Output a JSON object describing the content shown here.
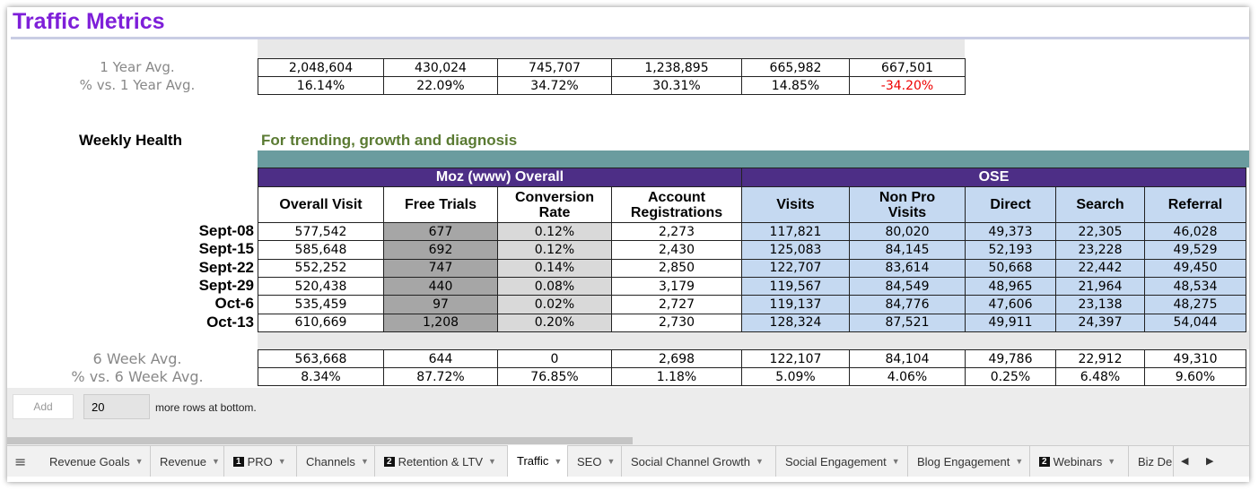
{
  "title": "Traffic Metrics",
  "summary": {
    "rows": [
      {
        "label": "1 Year Avg.",
        "cells": [
          "2,048,604",
          "430,024",
          "745,707",
          "1,238,895",
          "665,982",
          "667,501"
        ]
      },
      {
        "label": "% vs. 1 Year Avg.",
        "cells": [
          "16.14%",
          "22.09%",
          "34.72%",
          "30.31%",
          "14.85%",
          "-34.20%"
        ]
      }
    ]
  },
  "weekly": {
    "label": "Weekly Health",
    "subtitle": "For trending, growth and diagnosis",
    "groups": [
      "Moz (www) Overall",
      "OSE"
    ],
    "headers": [
      "Overall Visit",
      "Free Trials",
      "Conversion Rate",
      "Account Registrations",
      "Visits",
      "Non Pro Visits",
      "Direct",
      "Search",
      "Referral"
    ],
    "rows": [
      {
        "label": "Sept-08",
        "cells": [
          "577,542",
          "677",
          "0.12%",
          "2,273",
          "117,821",
          "80,020",
          "49,373",
          "22,305",
          "46,028"
        ]
      },
      {
        "label": "Sept-15",
        "cells": [
          "585,648",
          "692",
          "0.12%",
          "2,430",
          "125,083",
          "84,145",
          "52,193",
          "23,228",
          "49,529"
        ]
      },
      {
        "label": "Sept-22",
        "cells": [
          "552,252",
          "747",
          "0.14%",
          "2,850",
          "122,707",
          "83,614",
          "50,668",
          "22,442",
          "49,450"
        ]
      },
      {
        "label": "Sept-29",
        "cells": [
          "520,438",
          "440",
          "0.08%",
          "3,179",
          "119,567",
          "84,549",
          "48,965",
          "21,964",
          "48,534"
        ]
      },
      {
        "label": "Oct-6",
        "cells": [
          "535,459",
          "97",
          "0.02%",
          "2,727",
          "119,137",
          "84,776",
          "47,606",
          "23,138",
          "48,275"
        ]
      },
      {
        "label": "Oct-13",
        "cells": [
          "610,669",
          "1,208",
          "0.20%",
          "2,730",
          "128,324",
          "87,521",
          "49,911",
          "24,397",
          "54,044"
        ]
      }
    ]
  },
  "averages": {
    "rows": [
      {
        "label": "6 Week Avg.",
        "cells": [
          "563,668",
          "644",
          "0",
          "2,698",
          "122,107",
          "84,104",
          "49,786",
          "22,912",
          "49,310"
        ]
      },
      {
        "label": "% vs. 6 Week Avg.",
        "cells": [
          "8.34%",
          "87.72%",
          "76.85%",
          "1.18%",
          "5.09%",
          "4.06%",
          "0.25%",
          "6.48%",
          "9.60%"
        ]
      }
    ]
  },
  "add_rows": {
    "button": "Add",
    "count": "20",
    "text": "more rows at bottom."
  },
  "tabs": [
    {
      "label": "Revenue Goals"
    },
    {
      "label": "Revenue"
    },
    {
      "label": "PRO",
      "badge": "1"
    },
    {
      "label": "Channels"
    },
    {
      "label": "Retention & LTV",
      "badge": "2"
    },
    {
      "label": "Traffic"
    },
    {
      "label": "SEO"
    },
    {
      "label": "Social Channel Growth"
    },
    {
      "label": "Social Engagement"
    },
    {
      "label": "Blog Engagement"
    },
    {
      "label": "Webinars",
      "badge": "2"
    },
    {
      "label": "Biz De"
    }
  ],
  "active_tab": 5
}
